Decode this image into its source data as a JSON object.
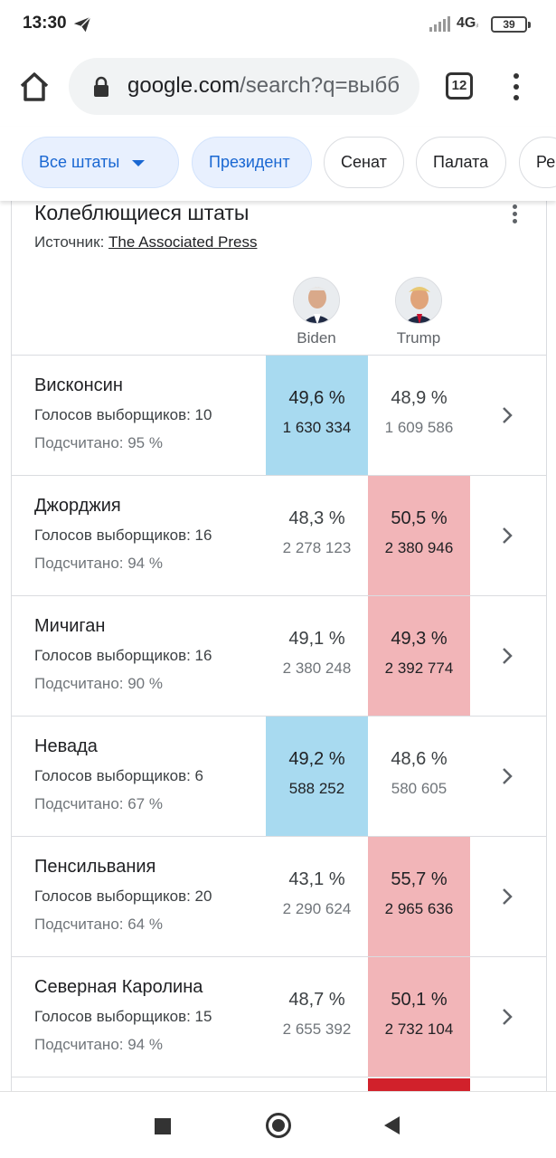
{
  "status_bar": {
    "time": "13:30",
    "network": "4G",
    "battery": "39"
  },
  "browser": {
    "url_main": "google.com",
    "url_rest": "/search?q=выбб",
    "tab_count": "12"
  },
  "chips": [
    {
      "label": "Все штаты",
      "selected": true,
      "dropdown": true
    },
    {
      "label": "Президент",
      "selected": true
    },
    {
      "label": "Сенат",
      "selected": false
    },
    {
      "label": "Палата",
      "selected": false
    },
    {
      "label": "Ре",
      "selected": false
    }
  ],
  "card": {
    "title": "Колеблющиеся штаты",
    "source_label": "Источник:",
    "source_link": "The Associated Press",
    "candidates": [
      {
        "name": "Biden",
        "color": "#a8daf0"
      },
      {
        "name": "Trump",
        "color": "#f2b5b8"
      }
    ],
    "rows": [
      {
        "state": "Висконсин",
        "votes": "Голосов выборщиков: 10",
        "counted": "Подсчитано: 95 %",
        "biden_pct": "49,6 %",
        "biden_num": "1 630 334",
        "trump_pct": "48,9 %",
        "trump_num": "1 609 586",
        "winner": "biden"
      },
      {
        "state": "Джорджия",
        "votes": "Голосов выборщиков: 16",
        "counted": "Подсчитано: 94 %",
        "biden_pct": "48,3 %",
        "biden_num": "2 278 123",
        "trump_pct": "50,5 %",
        "trump_num": "2 380 946",
        "winner": "trump"
      },
      {
        "state": "Мичиган",
        "votes": "Голосов выборщиков: 16",
        "counted": "Подсчитано: 90 %",
        "biden_pct": "49,1 %",
        "biden_num": "2 380 248",
        "trump_pct": "49,3 %",
        "trump_num": "2 392 774",
        "winner": "trump"
      },
      {
        "state": "Невада",
        "votes": "Голосов выборщиков: 6",
        "counted": "Подсчитано: 67 %",
        "biden_pct": "49,2 %",
        "biden_num": "588 252",
        "trump_pct": "48,6 %",
        "trump_num": "580 605",
        "winner": "biden"
      },
      {
        "state": "Пенсильвания",
        "votes": "Голосов выборщиков: 20",
        "counted": "Подсчитано: 64 %",
        "biden_pct": "43,1 %",
        "biden_num": "2 290 624",
        "trump_pct": "55,7 %",
        "trump_num": "2 965 636",
        "winner": "trump"
      },
      {
        "state": "Северная Каролина",
        "votes": "Голосов выборщиков: 15",
        "counted": "Подсчитано: 94 %",
        "biden_pct": "48,7 %",
        "biden_num": "2 655 392",
        "trump_pct": "50,1 %",
        "trump_num": "2 732 104",
        "winner": "trump"
      }
    ]
  },
  "colors": {
    "biden_win": "#a8daf0",
    "trump_win": "#f2b5b8",
    "trump_flip": "#d1212b",
    "chip_selected_text": "#1967d2"
  }
}
